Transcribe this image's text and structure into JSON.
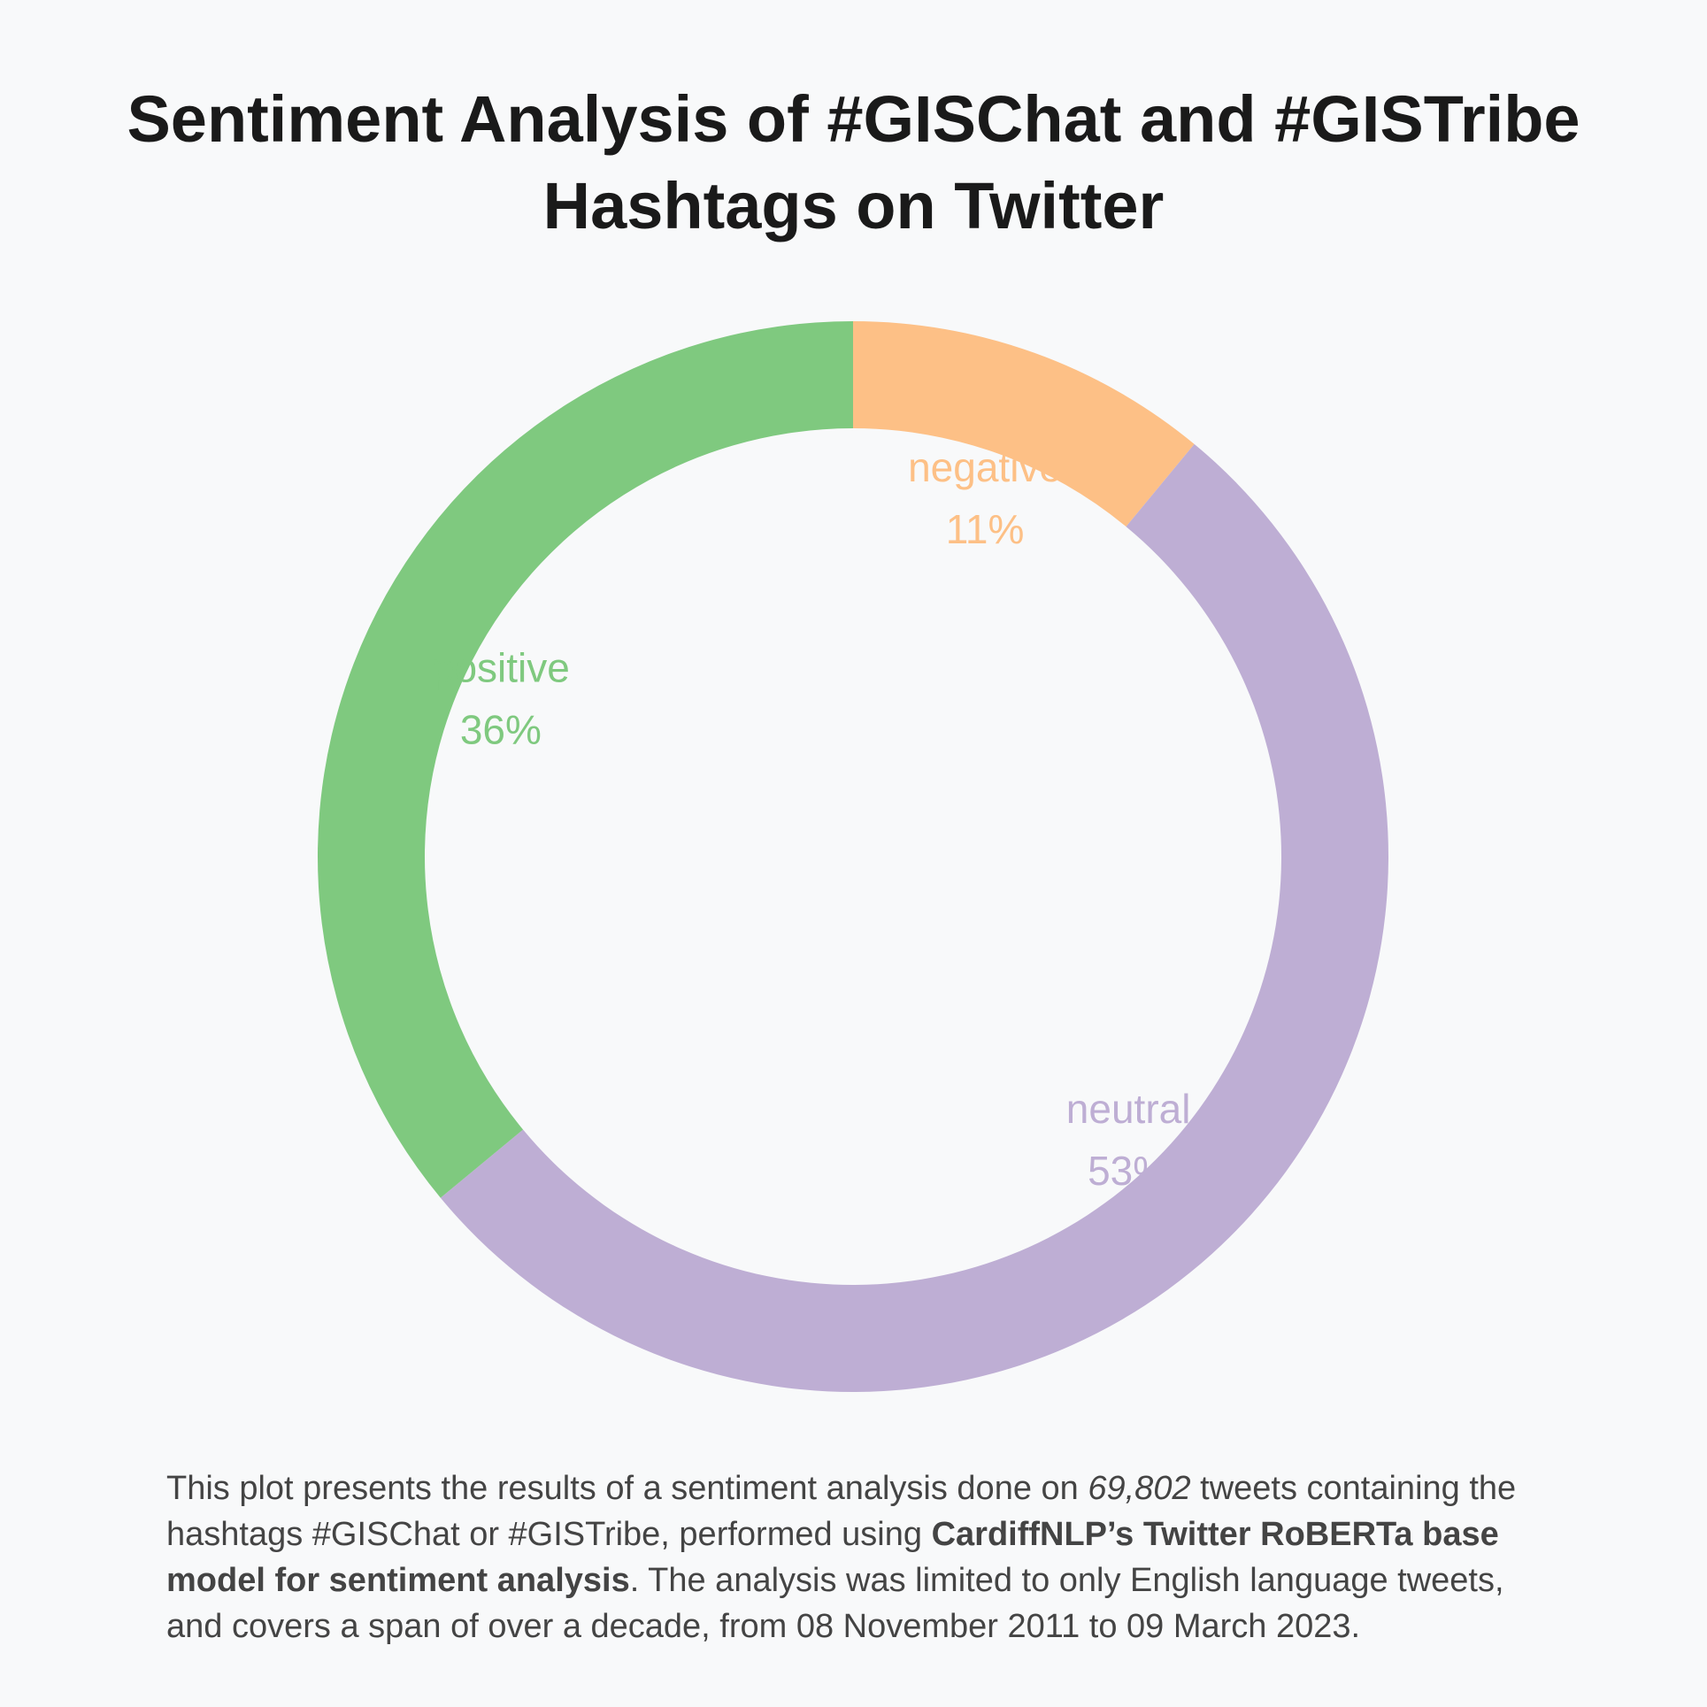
{
  "chart_data": {
    "type": "pie",
    "title_lines": [
      "Sentiment Analysis of #GISChat and #GISTribe",
      "Hashtags on Twitter"
    ],
    "slices": [
      {
        "label": "negative",
        "value": 11,
        "display": "11%",
        "color": "#fdc086"
      },
      {
        "label": "neutral",
        "value": 53,
        "display": "53%",
        "color": "#beaed4"
      },
      {
        "label": "positive",
        "value": 36,
        "display": "36%",
        "color": "#7fc97f"
      }
    ],
    "donut": true,
    "start": "top",
    "direction": "clockwise"
  },
  "caption": {
    "part1": "This plot presents the results of a sentiment analysis done on ",
    "tweet_count": "69,802",
    "part2": " tweets containing the hashtags #GISChat or #GISTribe, performed using ",
    "model": "CardiffNLP’s Twitter RoBERTa base model for sentiment analysis",
    "part3": ". The analysis was limited to only English language tweets, and covers a span of over a decade, from 08 November 2011 to 09 March 2023."
  },
  "background_color": "#f8f9fa"
}
